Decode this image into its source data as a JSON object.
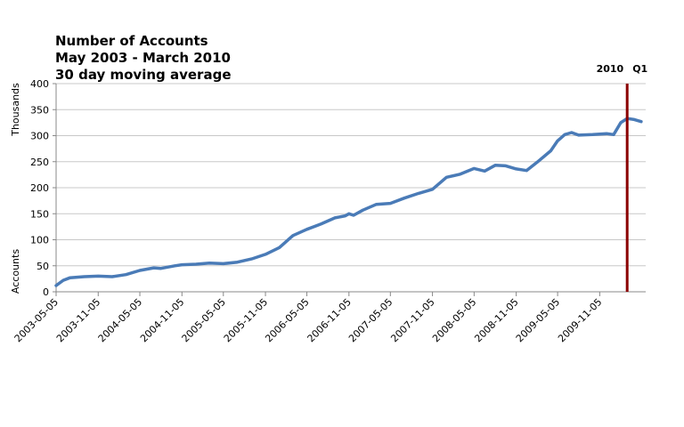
{
  "chart_data": {
    "type": "line",
    "title": [
      "Number of Accounts",
      "May 2003 - March 2010",
      "30 day moving average"
    ],
    "ylabel_top": "Thousands",
    "ylabel_bottom": "Accounts",
    "ylim": [
      0,
      400
    ],
    "yticks": [
      0,
      50,
      100,
      150,
      200,
      250,
      300,
      350,
      400
    ],
    "xticks": [
      "2003-05-05",
      "2003-11-05",
      "2004-05-05",
      "2004-11-05",
      "2005-05-05",
      "2005-11-05",
      "2006-05-05",
      "2006-11-05",
      "2007-05-05",
      "2007-11-05",
      "2008-05-05",
      "2008-11-05",
      "2009-05-05",
      "2009-11-05"
    ],
    "grid": "horizontal",
    "series_color": "#4a7bb7",
    "marker_line": {
      "x": "2010-03-05",
      "label_left": "2010",
      "label_right": "Q1",
      "color": "#8b0000"
    },
    "series": [
      {
        "x": [
          "2003-05-05",
          "2003-06-05",
          "2003-07-05",
          "2003-09-05",
          "2003-11-05",
          "2004-01-05",
          "2004-03-05",
          "2004-05-05",
          "2004-07-05",
          "2004-08-05",
          "2004-10-05",
          "2004-11-05",
          "2005-01-05",
          "2005-03-05",
          "2005-05-05",
          "2005-07-05",
          "2005-09-05",
          "2005-11-05",
          "2006-01-05",
          "2006-03-05",
          "2006-05-05",
          "2006-07-05",
          "2006-09-05",
          "2006-10-20",
          "2006-11-05",
          "2006-11-25",
          "2007-01-05",
          "2007-03-05",
          "2007-05-05",
          "2007-07-05",
          "2007-09-05",
          "2007-11-05",
          "2008-01-05",
          "2008-03-05",
          "2008-05-05",
          "2008-06-20",
          "2008-08-05",
          "2008-09-20",
          "2008-11-05",
          "2008-12-20",
          "2009-02-05",
          "2009-04-05",
          "2009-05-05",
          "2009-06-05",
          "2009-07-05",
          "2009-08-05",
          "2009-10-05",
          "2009-12-05",
          "2010-01-05",
          "2010-02-05",
          "2010-03-05",
          "2010-04-05",
          "2010-05-05"
        ],
        "y": [
          12,
          22,
          27,
          29,
          30,
          29,
          33,
          41,
          46,
          45,
          50,
          52,
          53,
          55,
          54,
          57,
          63,
          72,
          85,
          108,
          120,
          130,
          142,
          146,
          150,
          147,
          157,
          168,
          170,
          180,
          189,
          197,
          220,
          226,
          237,
          232,
          243,
          242,
          236,
          233,
          249,
          271,
          290,
          302,
          306,
          301,
          302,
          304,
          302,
          325,
          333,
          331,
          327
        ]
      }
    ]
  }
}
